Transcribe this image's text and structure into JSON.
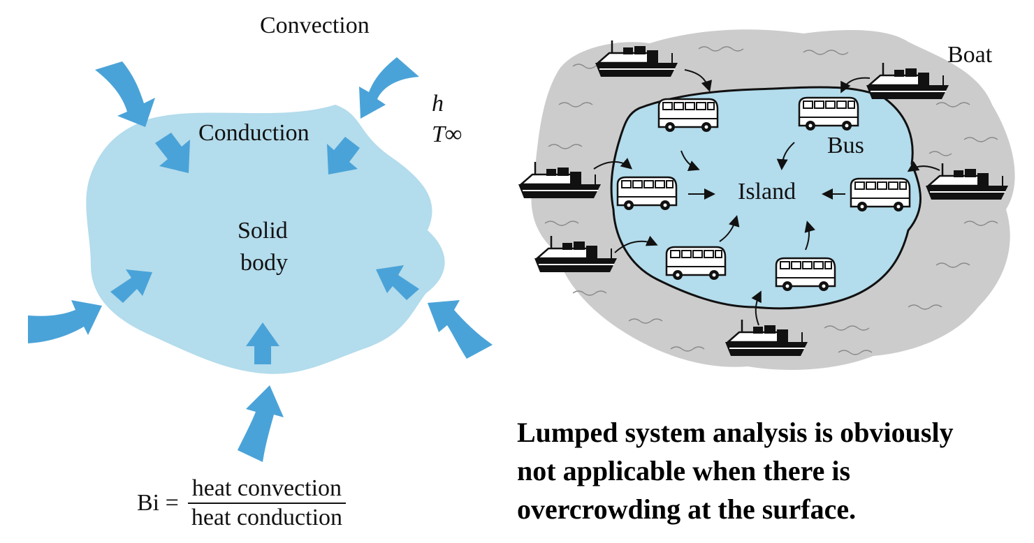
{
  "left_diagram": {
    "convection_label": "Convection",
    "conduction_label": "Conduction",
    "solid_body_line1": "Solid",
    "solid_body_line2": "body",
    "h_label": "h",
    "t_inf_label": "T∞",
    "biot_symbol": "Bi =",
    "biot_numerator": "heat convection",
    "biot_denominator": "heat conduction",
    "body_color": "#b3dcec",
    "arrow_color": "#4aa3d8"
  },
  "right_diagram": {
    "boat_label": "Boat",
    "bus_label": "Bus",
    "island_label": "Island",
    "sea_color": "#cccccc",
    "island_color": "#b3dcec"
  },
  "caption": {
    "line1": "Lumped system analysis is obviously",
    "line2": "not applicable when there is",
    "line3": "overcrowding at the surface."
  }
}
